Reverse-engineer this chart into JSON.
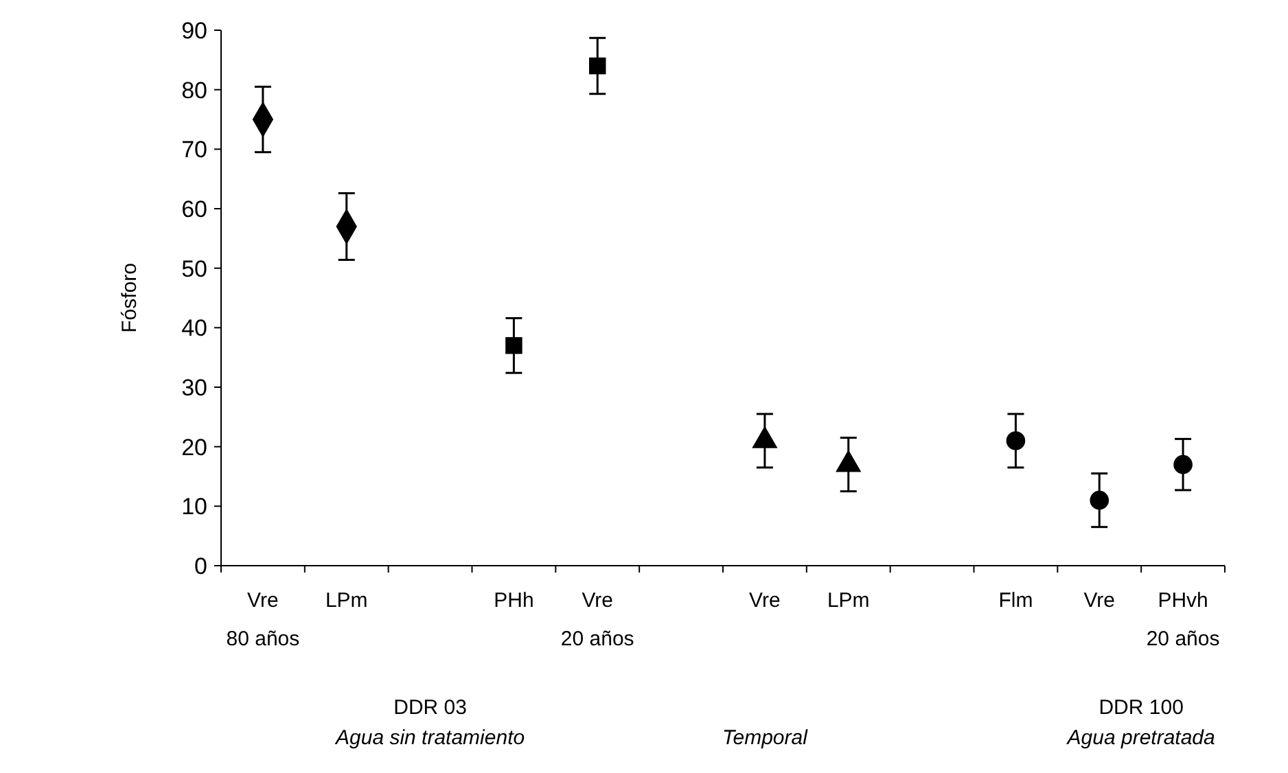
{
  "chart_data": {
    "type": "scatter",
    "ylabel": "Fósforo",
    "categories": [
      "Vre",
      "LPm",
      null,
      "PHh",
      "Vre",
      null,
      "Vre",
      "LPm",
      null,
      "Flm",
      "Vre",
      "PHvh"
    ],
    "ylim": [
      0,
      90
    ],
    "yticks": [
      0,
      10,
      20,
      30,
      40,
      50,
      60,
      70,
      80,
      90
    ],
    "grid": false,
    "series": [
      {
        "color": "#000000",
        "marker": "diamond",
        "values": [
          75,
          57,
          null,
          null,
          null,
          null,
          null,
          null,
          null,
          null,
          null,
          null
        ],
        "errors": [
          5.5,
          5.6,
          null,
          null,
          null,
          null,
          null,
          null,
          null,
          null,
          null,
          null
        ]
      },
      {
        "color": "#000000",
        "marker": "square",
        "values": [
          null,
          null,
          null,
          37,
          84,
          null,
          null,
          null,
          null,
          null,
          null,
          null
        ],
        "errors": [
          null,
          null,
          null,
          4.6,
          4.7,
          null,
          null,
          null,
          null,
          null,
          null,
          null
        ]
      },
      {
        "color": "#000000",
        "marker": "triangle",
        "values": [
          null,
          null,
          null,
          null,
          null,
          null,
          21,
          17,
          null,
          null,
          null,
          null
        ],
        "errors": [
          null,
          null,
          null,
          null,
          null,
          null,
          4.5,
          4.5,
          null,
          null,
          null,
          null
        ]
      },
      {
        "color": "#000000",
        "marker": "circle",
        "values": [
          null,
          null,
          null,
          null,
          null,
          null,
          null,
          null,
          null,
          21,
          11,
          17
        ],
        "errors": [
          null,
          null,
          null,
          null,
          null,
          null,
          null,
          null,
          null,
          4.5,
          4.5,
          4.3
        ]
      }
    ],
    "annotations": [
      "80 años",
      "20 años",
      "20 años",
      "DDR 03",
      "Agua sin tratamiento",
      "Temporal",
      "DDR 100",
      "Agua pretratada"
    ]
  }
}
